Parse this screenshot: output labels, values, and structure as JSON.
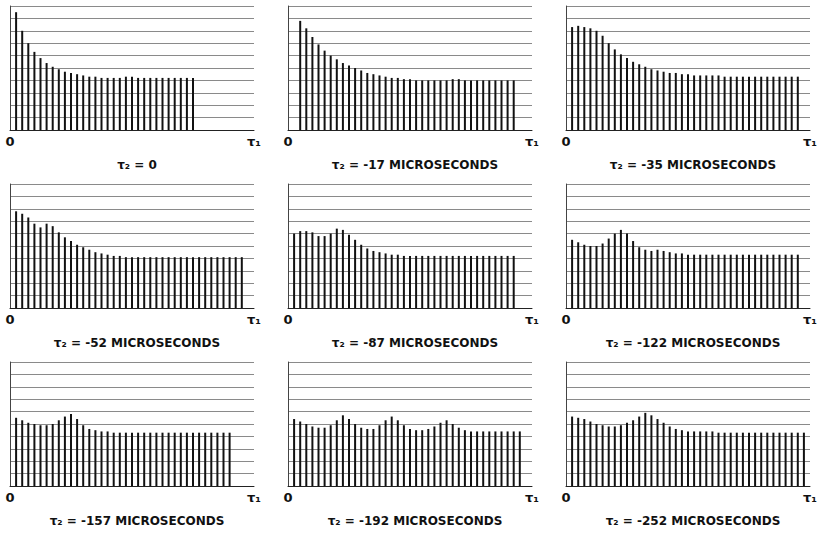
{
  "chart_data": [
    {
      "type": "bar",
      "title": "τ₂ = 0",
      "color": "#111111",
      "grid": true,
      "tick_labels": "x",
      "xlim": [
        0,
        40
      ],
      "xticks": [
        {
          "value": 0,
          "label": "0"
        },
        {
          "value": 40,
          "label": "τ₁"
        }
      ],
      "ylim": [
        0,
        10
      ],
      "yticks": [
        0,
        1,
        2,
        3,
        4,
        5,
        6,
        7,
        8,
        9,
        10
      ],
      "x": [
        1,
        2,
        3,
        4,
        5,
        6,
        7,
        8,
        9,
        10,
        11,
        12,
        13,
        14,
        15,
        16,
        17,
        18,
        19,
        20,
        21,
        22,
        23,
        24,
        25,
        26,
        27,
        28,
        29,
        30
      ],
      "values": [
        9.5,
        8.0,
        7.0,
        6.3,
        5.8,
        5.4,
        5.1,
        4.9,
        4.7,
        4.6,
        4.5,
        4.4,
        4.3,
        4.3,
        4.2,
        4.2,
        4.2,
        4.2,
        4.3,
        4.3,
        4.2,
        4.2,
        4.2,
        4.2,
        4.2,
        4.2,
        4.2,
        4.2,
        4.2,
        4.2
      ]
    },
    {
      "type": "bar",
      "title": "τ₂ = -17 MICROSECONDS",
      "color": "#111111",
      "grid": true,
      "tick_labels": "x",
      "xlim": [
        0,
        40
      ],
      "xticks": [
        {
          "value": 0,
          "label": "0"
        },
        {
          "value": 40,
          "label": "τ₁"
        }
      ],
      "ylim": [
        0,
        10
      ],
      "yticks": [
        0,
        1,
        2,
        3,
        4,
        5,
        6,
        7,
        8,
        9,
        10
      ],
      "x": [
        2,
        3,
        4,
        5,
        6,
        7,
        8,
        9,
        10,
        11,
        12,
        13,
        14,
        15,
        16,
        17,
        18,
        19,
        20,
        21,
        22,
        23,
        24,
        25,
        26,
        27,
        28,
        29,
        30,
        31,
        32,
        33,
        34,
        35,
        36,
        37
      ],
      "values": [
        8.8,
        8.2,
        7.5,
        6.9,
        6.4,
        6.0,
        5.7,
        5.4,
        5.2,
        5.0,
        4.8,
        4.6,
        4.5,
        4.4,
        4.3,
        4.2,
        4.2,
        4.1,
        4.1,
        4.0,
        4.0,
        4.0,
        4.0,
        4.0,
        4.0,
        4.1,
        4.1,
        4.0,
        4.0,
        4.0,
        4.0,
        4.0,
        4.0,
        4.0,
        4.0,
        4.0
      ]
    },
    {
      "type": "bar",
      "title": "τ₂ = -35 MICROSECONDS",
      "color": "#111111",
      "grid": true,
      "tick_labels": "x",
      "xlim": [
        0,
        40
      ],
      "xticks": [
        {
          "value": 0,
          "label": "0"
        },
        {
          "value": 40,
          "label": "τ₁"
        }
      ],
      "ylim": [
        0,
        10
      ],
      "yticks": [
        0,
        1,
        2,
        3,
        4,
        5,
        6,
        7,
        8,
        9,
        10
      ],
      "x": [
        1,
        2,
        3,
        4,
        5,
        6,
        7,
        8,
        9,
        10,
        11,
        12,
        13,
        14,
        15,
        16,
        17,
        18,
        19,
        20,
        21,
        22,
        23,
        24,
        25,
        26,
        27,
        28,
        29,
        30,
        31,
        32,
        33,
        34,
        35,
        36,
        37,
        38
      ],
      "values": [
        8.3,
        8.4,
        8.3,
        8.2,
        8.0,
        7.6,
        7.0,
        6.5,
        6.1,
        5.8,
        5.5,
        5.3,
        5.1,
        4.9,
        4.8,
        4.7,
        4.6,
        4.6,
        4.5,
        4.5,
        4.4,
        4.4,
        4.4,
        4.4,
        4.4,
        4.3,
        4.3,
        4.3,
        4.3,
        4.3,
        4.3,
        4.3,
        4.3,
        4.3,
        4.3,
        4.3,
        4.3,
        4.3
      ]
    },
    {
      "type": "bar",
      "title": "τ₂ = -52 MICROSECONDS",
      "color": "#111111",
      "grid": true,
      "tick_labels": "x",
      "xlim": [
        0,
        40
      ],
      "xticks": [
        {
          "value": 0,
          "label": "0"
        },
        {
          "value": 40,
          "label": "τ₁"
        }
      ],
      "ylim": [
        0,
        10
      ],
      "yticks": [
        0,
        1,
        2,
        3,
        4,
        5,
        6,
        7,
        8,
        9,
        10
      ],
      "x": [
        1,
        2,
        3,
        4,
        5,
        6,
        7,
        8,
        9,
        10,
        11,
        12,
        13,
        14,
        15,
        16,
        17,
        18,
        19,
        20,
        21,
        22,
        23,
        24,
        25,
        26,
        27,
        28,
        29,
        30,
        31,
        32,
        33,
        34,
        35,
        36,
        37,
        38
      ],
      "values": [
        7.8,
        7.6,
        7.3,
        6.8,
        6.5,
        6.8,
        6.6,
        6.1,
        5.7,
        5.4,
        5.1,
        4.9,
        4.7,
        4.5,
        4.4,
        4.3,
        4.2,
        4.2,
        4.1,
        4.1,
        4.1,
        4.1,
        4.1,
        4.1,
        4.1,
        4.1,
        4.1,
        4.1,
        4.1,
        4.1,
        4.1,
        4.1,
        4.1,
        4.1,
        4.1,
        4.1,
        4.1,
        4.1
      ]
    },
    {
      "type": "bar",
      "title": "τ₂ = -87 MICROSECONDS",
      "color": "#111111",
      "grid": true,
      "tick_labels": "x",
      "xlim": [
        0,
        40
      ],
      "xticks": [
        {
          "value": 0,
          "label": "0"
        },
        {
          "value": 40,
          "label": "τ₁"
        }
      ],
      "ylim": [
        0,
        10
      ],
      "yticks": [
        0,
        1,
        2,
        3,
        4,
        5,
        6,
        7,
        8,
        9,
        10
      ],
      "x": [
        1,
        2,
        3,
        4,
        5,
        6,
        7,
        8,
        9,
        10,
        11,
        12,
        13,
        14,
        15,
        16,
        17,
        18,
        19,
        20,
        21,
        22,
        23,
        24,
        25,
        26,
        27,
        28,
        29,
        30,
        31,
        32,
        33,
        34,
        35,
        36,
        37
      ],
      "values": [
        6.0,
        6.2,
        6.2,
        6.1,
        5.8,
        5.8,
        6.0,
        6.4,
        6.3,
        5.9,
        5.5,
        5.1,
        4.8,
        4.6,
        4.5,
        4.4,
        4.3,
        4.3,
        4.2,
        4.2,
        4.2,
        4.2,
        4.2,
        4.2,
        4.2,
        4.2,
        4.2,
        4.2,
        4.2,
        4.2,
        4.2,
        4.2,
        4.2,
        4.2,
        4.2,
        4.2,
        4.2
      ]
    },
    {
      "type": "bar",
      "title": "τ₂ = -122 MICROSECONDS",
      "color": "#111111",
      "grid": true,
      "tick_labels": "x",
      "xlim": [
        0,
        40
      ],
      "xticks": [
        {
          "value": 0,
          "label": "0"
        },
        {
          "value": 40,
          "label": "τ₁"
        }
      ],
      "ylim": [
        0,
        10
      ],
      "yticks": [
        0,
        1,
        2,
        3,
        4,
        5,
        6,
        7,
        8,
        9,
        10
      ],
      "x": [
        1,
        2,
        3,
        4,
        5,
        6,
        7,
        8,
        9,
        10,
        11,
        12,
        13,
        14,
        15,
        16,
        17,
        18,
        19,
        20,
        21,
        22,
        23,
        24,
        25,
        26,
        27,
        28,
        29,
        30,
        31,
        32,
        33,
        34,
        35,
        36,
        37,
        38
      ],
      "values": [
        5.5,
        5.3,
        5.1,
        5.0,
        5.0,
        5.2,
        5.6,
        6.0,
        6.3,
        6.0,
        5.4,
        4.9,
        4.7,
        4.6,
        4.7,
        4.6,
        4.5,
        4.4,
        4.4,
        4.3,
        4.3,
        4.3,
        4.3,
        4.3,
        4.3,
        4.3,
        4.3,
        4.3,
        4.3,
        4.3,
        4.3,
        4.3,
        4.3,
        4.3,
        4.3,
        4.3,
        4.3,
        4.3
      ]
    },
    {
      "type": "bar",
      "title": "τ₂ = -157 MICROSECONDS",
      "color": "#111111",
      "grid": true,
      "tick_labels": "x",
      "xlim": [
        0,
        40
      ],
      "xticks": [
        {
          "value": 0,
          "label": "0"
        },
        {
          "value": 40,
          "label": "τ₁"
        }
      ],
      "ylim": [
        0,
        10
      ],
      "yticks": [
        0,
        1,
        2,
        3,
        4,
        5,
        6,
        7,
        8,
        9,
        10
      ],
      "x": [
        1,
        2,
        3,
        4,
        5,
        6,
        7,
        8,
        9,
        10,
        11,
        12,
        13,
        14,
        15,
        16,
        17,
        18,
        19,
        20,
        21,
        22,
        23,
        24,
        25,
        26,
        27,
        28,
        29,
        30,
        31,
        32,
        33,
        34,
        35,
        36
      ],
      "values": [
        5.5,
        5.3,
        5.1,
        5.0,
        4.9,
        4.9,
        5.0,
        5.3,
        5.6,
        5.8,
        5.4,
        4.9,
        4.6,
        4.5,
        4.4,
        4.4,
        4.3,
        4.3,
        4.3,
        4.3,
        4.3,
        4.3,
        4.3,
        4.3,
        4.3,
        4.3,
        4.3,
        4.3,
        4.3,
        4.3,
        4.3,
        4.3,
        4.3,
        4.3,
        4.3,
        4.3
      ]
    },
    {
      "type": "bar",
      "title": "τ₂ = -192 MICROSECONDS",
      "color": "#111111",
      "grid": true,
      "tick_labels": "x",
      "xlim": [
        0,
        40
      ],
      "xticks": [
        {
          "value": 0,
          "label": "0"
        },
        {
          "value": 40,
          "label": "τ₁"
        }
      ],
      "ylim": [
        0,
        10
      ],
      "yticks": [
        0,
        1,
        2,
        3,
        4,
        5,
        6,
        7,
        8,
        9,
        10
      ],
      "x": [
        1,
        2,
        3,
        4,
        5,
        6,
        7,
        8,
        9,
        10,
        11,
        12,
        13,
        14,
        15,
        16,
        17,
        18,
        19,
        20,
        21,
        22,
        23,
        24,
        25,
        26,
        27,
        28,
        29,
        30,
        31,
        32,
        33,
        34,
        35,
        36,
        37,
        38
      ],
      "values": [
        5.4,
        5.2,
        5.0,
        4.8,
        4.7,
        4.7,
        4.9,
        5.3,
        5.7,
        5.4,
        5.0,
        4.7,
        4.6,
        4.6,
        4.9,
        5.3,
        5.6,
        5.3,
        4.9,
        4.6,
        4.5,
        4.5,
        4.6,
        4.8,
        5.1,
        5.3,
        5.0,
        4.7,
        4.5,
        4.4,
        4.4,
        4.4,
        4.4,
        4.4,
        4.4,
        4.4,
        4.4,
        4.4
      ]
    },
    {
      "type": "bar",
      "title": "τ₂ = -252 MICROSECONDS",
      "color": "#111111",
      "grid": true,
      "tick_labels": "x",
      "xlim": [
        0,
        40
      ],
      "xticks": [
        {
          "value": 0,
          "label": "0"
        },
        {
          "value": 40,
          "label": "τ₁"
        }
      ],
      "ylim": [
        0,
        10
      ],
      "yticks": [
        0,
        1,
        2,
        3,
        4,
        5,
        6,
        7,
        8,
        9,
        10
      ],
      "x": [
        1,
        2,
        3,
        4,
        5,
        6,
        7,
        8,
        9,
        10,
        11,
        12,
        13,
        14,
        15,
        16,
        17,
        18,
        19,
        20,
        21,
        22,
        23,
        24,
        25,
        26,
        27,
        28,
        29,
        30,
        31,
        32,
        33,
        34,
        35,
        36,
        37,
        38,
        39
      ],
      "values": [
        5.6,
        5.5,
        5.4,
        5.2,
        5.0,
        4.9,
        4.8,
        4.8,
        4.9,
        5.1,
        5.3,
        5.6,
        5.9,
        5.7,
        5.4,
        5.1,
        4.8,
        4.6,
        4.5,
        4.4,
        4.4,
        4.4,
        4.4,
        4.4,
        4.3,
        4.3,
        4.3,
        4.3,
        4.3,
        4.3,
        4.3,
        4.3,
        4.3,
        4.3,
        4.3,
        4.3,
        4.3,
        4.3,
        4.3
      ]
    }
  ]
}
